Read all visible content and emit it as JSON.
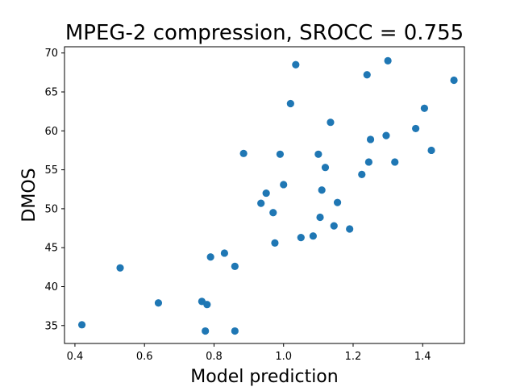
{
  "chart_data": {
    "type": "scatter",
    "title": "MPEG-2 compression, SROCC = 0.755",
    "xlabel": "Model prediction",
    "ylabel": "DMOS",
    "xlim": [
      0.37,
      1.52
    ],
    "ylim": [
      32.7,
      70.8
    ],
    "x_ticks": [
      "0.4",
      "0.6",
      "0.8",
      "1.0",
      "1.2",
      "1.4"
    ],
    "y_ticks": [
      "35",
      "40",
      "45",
      "50",
      "55",
      "60",
      "65",
      "70"
    ],
    "grid": false,
    "marker_color": "#1f77b4",
    "points": [
      {
        "x": 0.42,
        "y": 35.1
      },
      {
        "x": 0.53,
        "y": 42.4
      },
      {
        "x": 0.64,
        "y": 37.9
      },
      {
        "x": 0.765,
        "y": 38.1
      },
      {
        "x": 0.775,
        "y": 34.3
      },
      {
        "x": 0.78,
        "y": 37.7
      },
      {
        "x": 0.79,
        "y": 43.8
      },
      {
        "x": 0.83,
        "y": 44.3
      },
      {
        "x": 0.86,
        "y": 42.6
      },
      {
        "x": 0.86,
        "y": 34.3
      },
      {
        "x": 0.885,
        "y": 57.1
      },
      {
        "x": 0.935,
        "y": 50.7
      },
      {
        "x": 0.95,
        "y": 52.0
      },
      {
        "x": 0.97,
        "y": 49.5
      },
      {
        "x": 0.975,
        "y": 45.6
      },
      {
        "x": 0.99,
        "y": 57.0
      },
      {
        "x": 1.0,
        "y": 53.1
      },
      {
        "x": 1.02,
        "y": 63.5
      },
      {
        "x": 1.035,
        "y": 68.5
      },
      {
        "x": 1.05,
        "y": 46.3
      },
      {
        "x": 1.085,
        "y": 46.5
      },
      {
        "x": 1.1,
        "y": 57.0
      },
      {
        "x": 1.105,
        "y": 48.9
      },
      {
        "x": 1.11,
        "y": 52.4
      },
      {
        "x": 1.12,
        "y": 55.3
      },
      {
        "x": 1.135,
        "y": 61.1
      },
      {
        "x": 1.145,
        "y": 47.8
      },
      {
        "x": 1.155,
        "y": 50.8
      },
      {
        "x": 1.19,
        "y": 47.4
      },
      {
        "x": 1.225,
        "y": 54.4
      },
      {
        "x": 1.24,
        "y": 67.2
      },
      {
        "x": 1.245,
        "y": 56.0
      },
      {
        "x": 1.25,
        "y": 58.9
      },
      {
        "x": 1.295,
        "y": 59.4
      },
      {
        "x": 1.3,
        "y": 69.0
      },
      {
        "x": 1.32,
        "y": 56.0
      },
      {
        "x": 1.38,
        "y": 60.3
      },
      {
        "x": 1.405,
        "y": 62.9
      },
      {
        "x": 1.425,
        "y": 57.5
      },
      {
        "x": 1.49,
        "y": 66.5
      }
    ]
  }
}
